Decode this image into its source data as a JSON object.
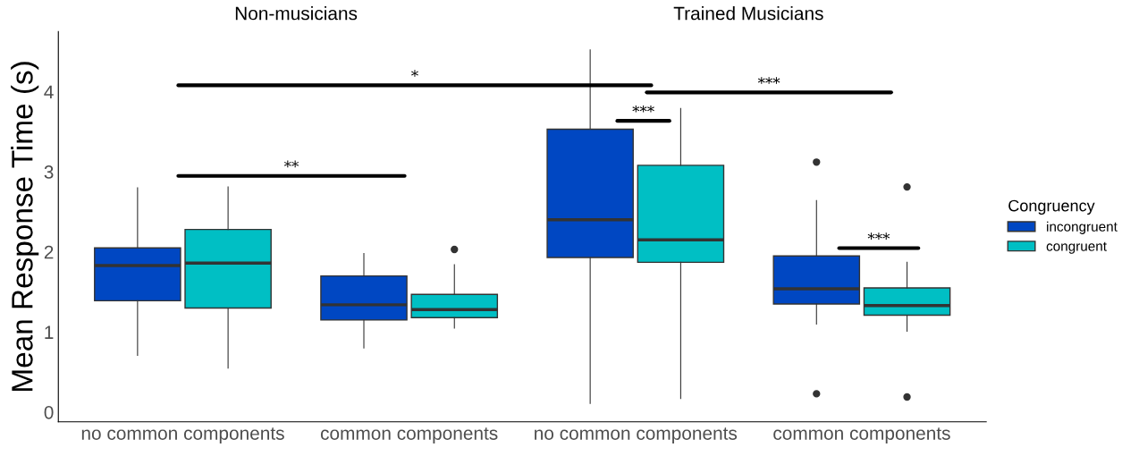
{
  "chart_data": {
    "type": "box",
    "ylabel": "Mean Response Time (s)",
    "legend_title": "Congruency",
    "legend": "right",
    "grid": false,
    "categories": [
      "no common components",
      "common components",
      "no common components",
      "common components"
    ],
    "ylim": [
      -0.12,
      4.75
    ],
    "yticks": [
      0,
      1,
      2,
      3,
      4
    ],
    "annotations": [
      "Non-musicians",
      "Trained Musicians",
      "*",
      "**",
      "***",
      "***",
      "***"
    ],
    "series": [
      {
        "name": "incongruent",
        "color": "#0047c2",
        "boxes": [
          {
            "low": 0.71,
            "q1": 1.39,
            "median": 1.83,
            "q3": 2.05,
            "high": 2.8
          },
          {
            "low": 0.8,
            "q1": 1.15,
            "median": 1.34,
            "q3": 1.7,
            "high": 1.98
          },
          {
            "low": 0.11,
            "q1": 1.93,
            "median": 2.4,
            "q3": 3.53,
            "high": 4.52
          },
          {
            "low": 1.1,
            "q1": 1.35,
            "median": 1.54,
            "q3": 1.95,
            "high": 2.64,
            "outliers": [
              3.12,
              0.23
            ]
          }
        ]
      },
      {
        "name": "congruent",
        "color": "#00bfc4",
        "boxes": [
          {
            "low": 0.55,
            "q1": 1.3,
            "median": 1.86,
            "q3": 2.28,
            "high": 2.81
          },
          {
            "low": 1.05,
            "q1": 1.18,
            "median": 1.28,
            "q3": 1.47,
            "high": 1.84,
            "outliers": [
              2.03
            ]
          },
          {
            "low": 0.17,
            "q1": 1.87,
            "median": 2.15,
            "q3": 3.08,
            "high": 3.79
          },
          {
            "low": 1.01,
            "q1": 1.21,
            "median": 1.33,
            "q3": 1.55,
            "high": 1.87,
            "outliers": [
              2.81,
              0.19
            ]
          }
        ]
      }
    ]
  }
}
